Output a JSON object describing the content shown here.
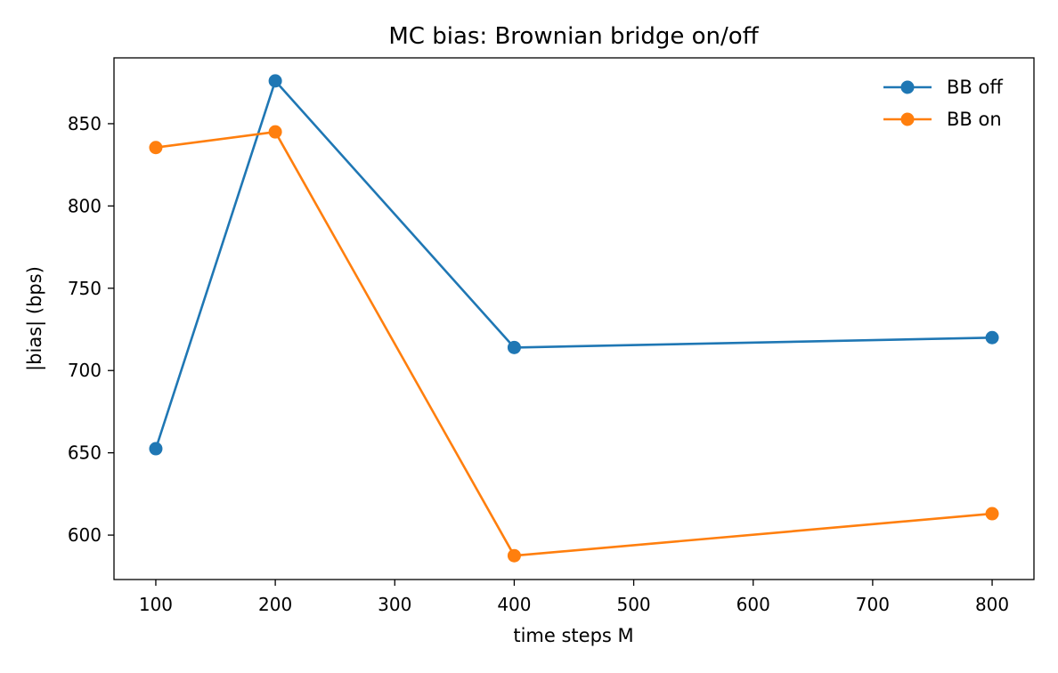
{
  "chart_data": {
    "type": "line",
    "title": "MC bias: Brownian bridge on/off",
    "xlabel": "time steps M",
    "ylabel": "|bias| (bps)",
    "x": [
      100,
      200,
      400,
      800
    ],
    "series": [
      {
        "name": "BB off",
        "color": "#1f77b4",
        "values": [
          652.5,
          876,
          714,
          720
        ]
      },
      {
        "name": "BB on",
        "color": "#ff7f0e",
        "values": [
          835.5,
          845,
          587.5,
          613
        ]
      }
    ],
    "xlim": [
      65,
      835
    ],
    "ylim": [
      573,
      890
    ],
    "xticks": [
      "100",
      "200",
      "300",
      "400",
      "500",
      "600",
      "700",
      "800"
    ],
    "yticks": [
      "600",
      "650",
      "700",
      "750",
      "800",
      "850"
    ],
    "legend_position": "top-right",
    "grid": false
  }
}
